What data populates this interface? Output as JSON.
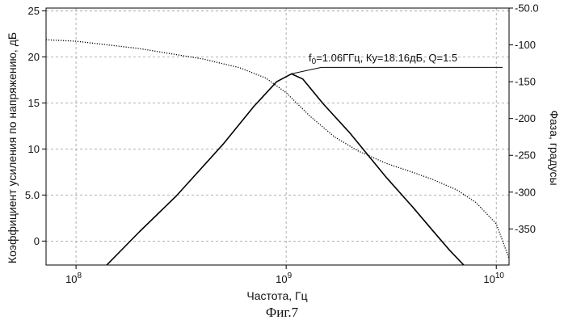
{
  "caption": "Фиг.7",
  "colors": {
    "gain": "#000000",
    "phase": "#000000",
    "grid": "#9a9a9a"
  },
  "chart_data": {
    "type": "line",
    "xlabel": "Частота, Гц",
    "ylabel_left": "Коэффициент усиления по напряжению, дБ",
    "ylabel_right": "Фаза, градусы",
    "x_scale": "log",
    "xlim": [
      72000000,
      11500000000
    ],
    "ylim_left": [
      -2.6,
      25.3
    ],
    "ylim_right": [
      -399,
      -50
    ],
    "grid": true,
    "x_ticks": [
      {
        "value": 100000000,
        "base": "10",
        "exp": "8"
      },
      {
        "value": 1000000000,
        "base": "10",
        "exp": "9"
      },
      {
        "value": 10000000000,
        "base": "10",
        "exp": "10"
      }
    ],
    "y_ticks_left": [
      {
        "value": 25,
        "label": "25"
      },
      {
        "value": 20,
        "label": "20"
      },
      {
        "value": 15,
        "label": "15"
      },
      {
        "value": 10,
        "label": "10"
      },
      {
        "value": 5,
        "label": "5.0"
      },
      {
        "value": 0,
        "label": "0"
      }
    ],
    "y_ticks_right": [
      {
        "value": -50,
        "label": "-50.0"
      },
      {
        "value": -100,
        "label": "-100"
      },
      {
        "value": -150,
        "label": "-150"
      },
      {
        "value": -200,
        "label": "-200"
      },
      {
        "value": -250,
        "label": "-250"
      },
      {
        "value": -300,
        "label": "-300"
      },
      {
        "value": -350,
        "label": "-350"
      }
    ],
    "series": [
      {
        "axis": "left",
        "style": "solid",
        "x": [
          140000000,
          200000000,
          300000000,
          500000000,
          700000000,
          900000000,
          1060000000,
          1200000000,
          1500000000,
          2000000000,
          3000000000,
          4000000000,
          5000000000,
          6000000000,
          7000000000
        ],
        "y": [
          -2.6,
          1.0,
          4.9,
          10.5,
          14.6,
          17.3,
          18.16,
          17.6,
          14.9,
          11.8,
          6.9,
          3.7,
          1.1,
          -1.0,
          -2.6
        ]
      },
      {
        "axis": "right",
        "style": "dotted",
        "x": [
          72000000,
          100000000,
          200000000,
          400000000,
          600000000,
          800000000,
          1000000000,
          1300000000,
          1700000000,
          2200000000,
          3000000000,
          4000000000,
          5000000000,
          6500000000,
          8000000000,
          10000000000,
          11500000000
        ],
        "y": [
          -93,
          -95,
          -105,
          -119,
          -131,
          -145,
          -165,
          -197,
          -225,
          -244,
          -261,
          -273,
          -283,
          -297,
          -314,
          -343,
          -390
        ]
      }
    ],
    "annotation": {
      "text_main": "f",
      "text_sub": "0",
      "text_rest": "=1.06ГГц, Ку=18.16дБ, Q=1.5",
      "x": 1060000000,
      "y": 18.16
    }
  }
}
